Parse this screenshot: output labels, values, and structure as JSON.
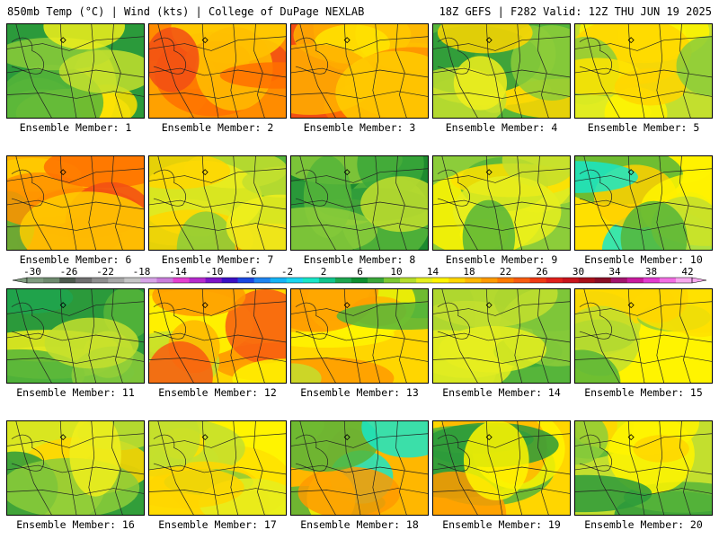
{
  "header": {
    "left": "850mb Temp (°C) | Wind (kts) | College of DuPage NEXLAB",
    "right": "18Z GEFS | F282 Valid: 12Z THU JUN 19 2025"
  },
  "colorbar": {
    "tick_labels": [
      "-30",
      "-26",
      "-22",
      "-18",
      "-14",
      "-10",
      "-6",
      "-2",
      "2",
      "6",
      "10",
      "14",
      "18",
      "22",
      "26",
      "30",
      "34",
      "38",
      "42"
    ],
    "colors": [
      "#7f9b7f",
      "#6e8a6e",
      "#4e5a4e",
      "#6f6f6f",
      "#8e8e8e",
      "#a8a8a8",
      "#c5c5c5",
      "#d7a3e7",
      "#c97ddb",
      "#e43fd0",
      "#b52acd",
      "#7c14c7",
      "#3a10c4",
      "#1a48e0",
      "#1f85f0",
      "#15b4f5",
      "#1ad6f0",
      "#19e6c7",
      "#10c48c",
      "#1ea54f",
      "#0e8f2f",
      "#3aa73a",
      "#7cc832",
      "#b5dd2c",
      "#e6ef1e",
      "#fff400",
      "#ffd600",
      "#ffb700",
      "#ff9a00",
      "#ff7a00",
      "#f85c10",
      "#ef3a14",
      "#e0201c",
      "#c8141c",
      "#a8101a",
      "#8a0e26",
      "#a3146e",
      "#c81a9e",
      "#e23ad0",
      "#f26ee2",
      "#f8a8ee"
    ]
  },
  "panels": [
    {
      "label": "Ensemble Member: 1",
      "palette": [
        "#2b9a3b",
        "#56b53a",
        "#8ccd3a",
        "#c3df2e",
        "#f0ef1c",
        "#ffe000"
      ]
    },
    {
      "label": "Ensemble Member: 2",
      "palette": [
        "#ff8c00",
        "#ffa500",
        "#ffbe00",
        "#ff7000",
        "#f24e14",
        "#ffd200"
      ]
    },
    {
      "label": "Ensemble Member: 3",
      "palette": [
        "#f24e14",
        "#ff7000",
        "#ff9000",
        "#ffb000",
        "#ffcc00",
        "#ffe400"
      ]
    },
    {
      "label": "Ensemble Member: 4",
      "palette": [
        "#56b53a",
        "#8ccd3a",
        "#c3df2e",
        "#f0ef1c",
        "#ffd600",
        "#2b9a3b"
      ]
    },
    {
      "label": "Ensemble Member: 5",
      "palette": [
        "#c3df2e",
        "#e6ef1e",
        "#fff400",
        "#ffd600",
        "#8ccd3a",
        "#ffe400"
      ]
    },
    {
      "label": "Ensemble Member: 6",
      "palette": [
        "#ffb000",
        "#ff9000",
        "#ff7000",
        "#f24e14",
        "#ffcc00",
        "#56b53a"
      ]
    },
    {
      "label": "Ensemble Member: 7",
      "palette": [
        "#56b53a",
        "#8ccd3a",
        "#c3df2e",
        "#f0ef1c",
        "#ffd600",
        "#ffb000"
      ]
    },
    {
      "label": "Ensemble Member: 8",
      "palette": [
        "#1e8a2f",
        "#2b9a3b",
        "#56b53a",
        "#8ccd3a",
        "#c3df2e",
        "#3aa73a"
      ]
    },
    {
      "label": "Ensemble Member: 9",
      "palette": [
        "#8ccd3a",
        "#c3df2e",
        "#e6ef1e",
        "#fff400",
        "#56b53a",
        "#ffe000"
      ]
    },
    {
      "label": "Ensemble Member: 10",
      "palette": [
        "#ffe000",
        "#fff400",
        "#c3df2e",
        "#56b53a",
        "#19e6c7",
        "#ffd000"
      ]
    },
    {
      "label": "Ensemble Member: 11",
      "palette": [
        "#2b9a3b",
        "#1ea54f",
        "#56b53a",
        "#8ccd3a",
        "#c3df2e",
        "#f0ef1c"
      ]
    },
    {
      "label": "Ensemble Member: 12",
      "palette": [
        "#ffd600",
        "#ffb700",
        "#ff9a00",
        "#fff400",
        "#f85c10",
        "#c3df2e"
      ]
    },
    {
      "label": "Ensemble Member: 13",
      "palette": [
        "#ffd600",
        "#fff400",
        "#ffb700",
        "#ff9a00",
        "#56b53a",
        "#c3df2e"
      ]
    },
    {
      "label": "Ensemble Member: 14",
      "palette": [
        "#56b53a",
        "#3aa73a",
        "#8ccd3a",
        "#c3df2e",
        "#e6ef1e",
        "#2b9a3b"
      ]
    },
    {
      "label": "Ensemble Member: 15",
      "palette": [
        "#fff400",
        "#ffe000",
        "#c3df2e",
        "#ffd600",
        "#56b53a",
        "#8ccd3a"
      ]
    },
    {
      "label": "Ensemble Member: 16",
      "palette": [
        "#56b53a",
        "#2b9a3b",
        "#8ccd3a",
        "#c3df2e",
        "#f0ef1c",
        "#ffd600"
      ]
    },
    {
      "label": "Ensemble Member: 17",
      "palette": [
        "#fff400",
        "#ffe000",
        "#e6ef1e",
        "#c3df2e",
        "#ffd600",
        "#8ccd3a"
      ]
    },
    {
      "label": "Ensemble Member: 18",
      "palette": [
        "#ffb700",
        "#ff9a00",
        "#ffd600",
        "#56b53a",
        "#19e6c7",
        "#fff400"
      ]
    },
    {
      "label": "Ensemble Member: 19",
      "palette": [
        "#ffd600",
        "#ffb700",
        "#56b53a",
        "#2b9a3b",
        "#fff400",
        "#ff9a00"
      ]
    },
    {
      "label": "Ensemble Member: 20",
      "palette": [
        "#c3df2e",
        "#56b53a",
        "#fff400",
        "#ffd600",
        "#2b9a3b",
        "#8ccd3a"
      ]
    }
  ]
}
